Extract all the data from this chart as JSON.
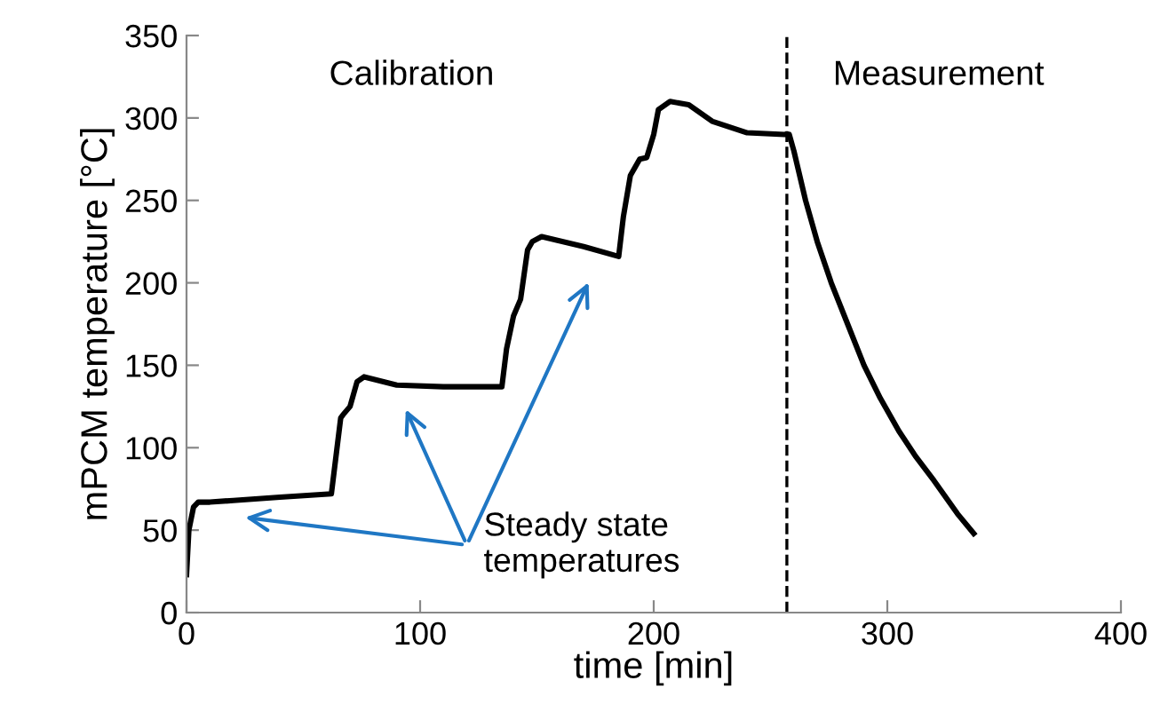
{
  "chart_data": {
    "type": "line",
    "xlabel": "time [min]",
    "ylabel": "mPCM temperature [°C]",
    "x": [
      0,
      1,
      3,
      5,
      10,
      20,
      40,
      62,
      64,
      66,
      67,
      70,
      73,
      76,
      90,
      110,
      135,
      137,
      140,
      143,
      146,
      148,
      152,
      170,
      185,
      187,
      190,
      194,
      197,
      200,
      202,
      207,
      215,
      225,
      240,
      256,
      258,
      260,
      265,
      270,
      276,
      283,
      290,
      297,
      305,
      312,
      320,
      330,
      337
    ],
    "values": [
      23,
      50,
      64,
      67,
      67,
      68,
      70,
      72,
      95,
      118,
      120,
      125,
      140,
      143,
      138,
      137,
      137,
      160,
      180,
      190,
      220,
      225,
      228,
      222,
      216,
      240,
      265,
      275,
      276,
      290,
      305,
      310,
      308,
      298,
      291,
      290,
      290,
      280,
      250,
      225,
      200,
      175,
      150,
      130,
      110,
      95,
      80,
      60,
      48
    ],
    "color": "#000000",
    "line_style": "solid",
    "marker": "none",
    "xlim": [
      0,
      400
    ],
    "ylim": [
      0,
      350
    ],
    "xticks": [
      0,
      100,
      200,
      300,
      400
    ],
    "yticks": [
      0,
      50,
      100,
      150,
      200,
      250,
      300,
      350
    ],
    "grid": false,
    "ref_lines": [
      {
        "axis": "x",
        "value": 257,
        "color": "#000000",
        "line_style": "dashed"
      }
    ],
    "annotations": [
      "Calibration",
      "Measurement",
      "Steady state\ntemperatures"
    ]
  }
}
